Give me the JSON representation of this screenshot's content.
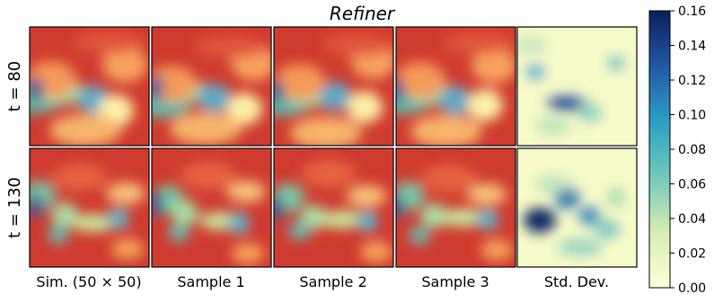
{
  "title": "Refiner",
  "rows": [
    "t = 80",
    "t = 130"
  ],
  "columns": [
    "Sim. (50 × 50)",
    "Sample 1",
    "Sample 2",
    "Sample 3",
    "Std. Dev."
  ],
  "colorbar": {
    "lim": [
      0,
      0.16
    ],
    "ticks": [
      {
        "value": 0,
        "label": "0.00"
      },
      {
        "value": 0.02,
        "label": "0.02"
      },
      {
        "value": 0.04,
        "label": "0.04"
      },
      {
        "value": 0.06,
        "label": "0.06"
      },
      {
        "value": 0.08,
        "label": "0.08"
      },
      {
        "value": 0.1,
        "label": "0.10"
      },
      {
        "value": 0.12,
        "label": "0.12"
      },
      {
        "value": 0.14,
        "label": "0.14"
      },
      {
        "value": 0.16,
        "label": "0.16"
      }
    ]
  }
}
